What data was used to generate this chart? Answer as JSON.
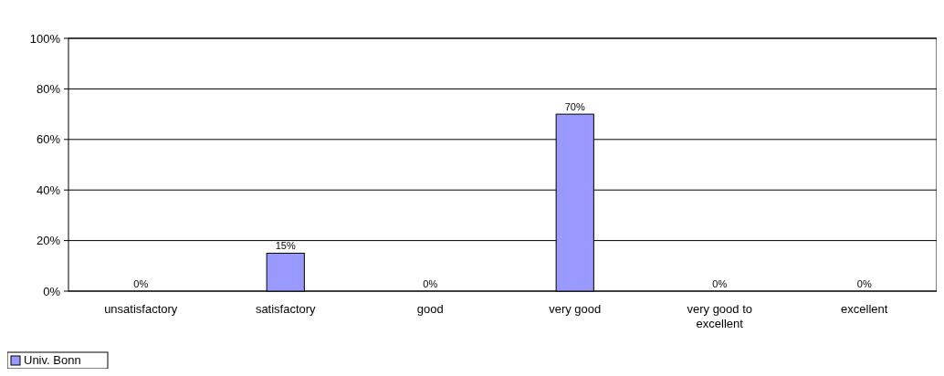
{
  "chart_data": {
    "type": "bar",
    "categories": [
      "unsatisfactory",
      "satisfactory",
      "good",
      "very good",
      "very good to excellent",
      "excellent"
    ],
    "series": [
      {
        "name": "Univ. Bonn",
        "color": "#9999ff",
        "values": [
          0,
          15,
          0,
          70,
          0,
          0
        ],
        "value_labels": [
          "0%",
          "15%",
          "0%",
          "70%",
          "0%",
          "0%"
        ]
      }
    ],
    "ylim": [
      0,
      100
    ],
    "yticks": [
      {
        "value": 0,
        "label": "0%"
      },
      {
        "value": 20,
        "label": "20%"
      },
      {
        "value": 40,
        "label": "40%"
      },
      {
        "value": 60,
        "label": "60%"
      },
      {
        "value": 80,
        "label": "80%"
      },
      {
        "value": 100,
        "label": "100%"
      }
    ],
    "grid": "y",
    "legend": "bottom left"
  }
}
